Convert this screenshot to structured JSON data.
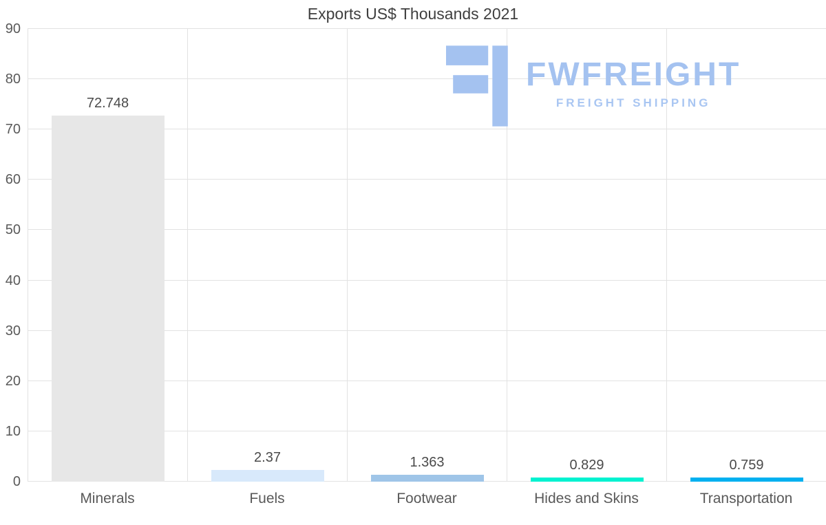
{
  "chart_data": {
    "type": "bar",
    "title": "Exports US$ Thousands 2021",
    "categories": [
      "Minerals",
      "Fuels",
      "Footwear",
      "Hides and Skins",
      "Transportation"
    ],
    "values": [
      72.748,
      2.37,
      1.363,
      0.829,
      0.759
    ],
    "value_labels": [
      "72.748",
      "2.37",
      "1.363",
      "0.829",
      "0.759"
    ],
    "bar_colors": [
      "#e7e7e7",
      "#d8e9fb",
      "#9fc5e8",
      "#00f2d0",
      "#00b0f0"
    ],
    "xlabel": "",
    "ylabel": "",
    "ylim": [
      0,
      90
    ],
    "yticks": [
      0,
      10,
      20,
      30,
      40,
      50,
      60,
      70,
      80,
      90
    ],
    "grid": true,
    "legend": false
  },
  "logo": {
    "brand": "FWFREIGHT",
    "tagline": "FREIGHT SHIPPING",
    "color": "#a4c2f0"
  }
}
